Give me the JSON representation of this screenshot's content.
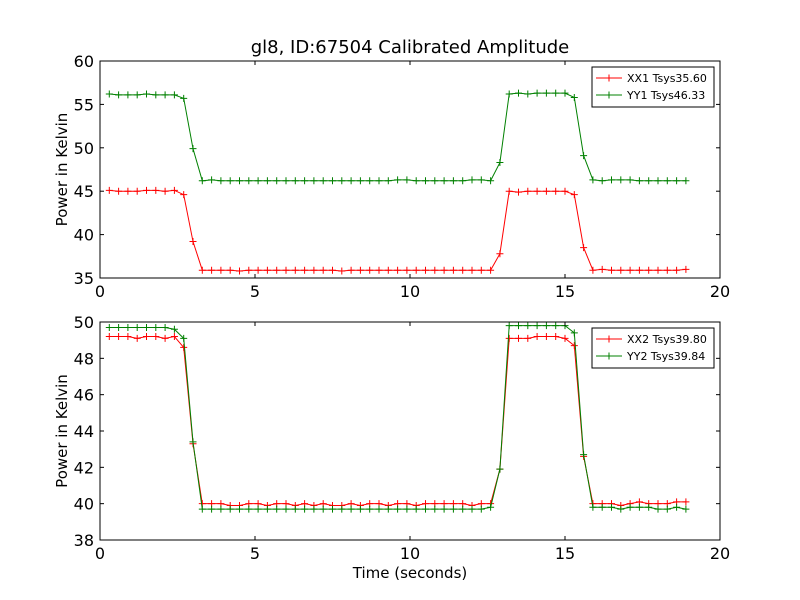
{
  "chart_data": [
    {
      "type": "line",
      "title": "gl8, ID:67504 Calibrated Amplitude",
      "xlabel": "",
      "ylabel": "Power in Kelvin",
      "xlim": [
        0,
        20
      ],
      "ylim": [
        35,
        60
      ],
      "xticks": [
        0,
        5,
        10,
        15,
        20
      ],
      "yticks": [
        35,
        40,
        45,
        50,
        55,
        60
      ],
      "grid": false,
      "legend_position": "top-right",
      "x": [
        0.3,
        0.6,
        0.9,
        1.2,
        1.5,
        1.8,
        2.1,
        2.4,
        2.7,
        3.0,
        3.3,
        3.6,
        3.9,
        4.2,
        4.5,
        4.8,
        5.1,
        5.4,
        5.7,
        6.0,
        6.3,
        6.6,
        6.9,
        7.2,
        7.5,
        7.8,
        8.1,
        8.4,
        8.7,
        9.0,
        9.3,
        9.6,
        9.9,
        10.2,
        10.5,
        10.8,
        11.1,
        11.4,
        11.7,
        12.0,
        12.3,
        12.6,
        12.9,
        13.2,
        13.5,
        13.8,
        14.1,
        14.4,
        14.7,
        15.0,
        15.3,
        15.6,
        15.9,
        16.2,
        16.5,
        16.8,
        17.1,
        17.4,
        17.7,
        18.0,
        18.3,
        18.6,
        18.9
      ],
      "series": [
        {
          "name": "XX1 Tsys35.60",
          "color": "#ff0000",
          "values": [
            45.1,
            45.0,
            45.0,
            45.0,
            45.1,
            45.1,
            45.0,
            45.1,
            44.6,
            39.2,
            35.9,
            35.9,
            35.9,
            35.9,
            35.8,
            35.9,
            35.9,
            35.9,
            35.9,
            35.9,
            35.9,
            35.9,
            35.9,
            35.9,
            35.9,
            35.8,
            35.9,
            35.9,
            35.9,
            35.9,
            35.9,
            35.9,
            35.9,
            35.9,
            35.9,
            35.9,
            35.9,
            35.9,
            35.9,
            35.9,
            35.9,
            35.9,
            37.8,
            45.0,
            44.9,
            45.0,
            45.0,
            45.0,
            45.0,
            45.0,
            44.6,
            38.5,
            35.9,
            36.0,
            35.9,
            35.9,
            35.9,
            35.9,
            35.9,
            35.9,
            35.9,
            35.9,
            36.0
          ]
        },
        {
          "name": "YY1 Tsys46.33",
          "color": "#008000",
          "values": [
            56.2,
            56.1,
            56.1,
            56.1,
            56.2,
            56.1,
            56.1,
            56.1,
            55.7,
            49.9,
            46.2,
            46.3,
            46.2,
            46.2,
            46.2,
            46.2,
            46.2,
            46.2,
            46.2,
            46.2,
            46.2,
            46.2,
            46.2,
            46.2,
            46.2,
            46.2,
            46.2,
            46.2,
            46.2,
            46.2,
            46.2,
            46.3,
            46.3,
            46.2,
            46.2,
            46.2,
            46.2,
            46.2,
            46.2,
            46.3,
            46.3,
            46.2,
            48.3,
            56.2,
            56.3,
            56.2,
            56.3,
            56.3,
            56.3,
            56.3,
            55.8,
            49.1,
            46.3,
            46.2,
            46.3,
            46.3,
            46.3,
            46.2,
            46.2,
            46.2,
            46.2,
            46.2,
            46.2
          ]
        }
      ]
    },
    {
      "type": "line",
      "title": "",
      "xlabel": "Time (seconds)",
      "ylabel": "Power in Kelvin",
      "xlim": [
        0,
        20
      ],
      "ylim": [
        38,
        50
      ],
      "xticks": [
        0,
        5,
        10,
        15,
        20
      ],
      "yticks": [
        38,
        40,
        42,
        44,
        46,
        48,
        50
      ],
      "grid": false,
      "legend_position": "top-right",
      "x": [
        0.3,
        0.6,
        0.9,
        1.2,
        1.5,
        1.8,
        2.1,
        2.4,
        2.7,
        3.0,
        3.3,
        3.6,
        3.9,
        4.2,
        4.5,
        4.8,
        5.1,
        5.4,
        5.7,
        6.0,
        6.3,
        6.6,
        6.9,
        7.2,
        7.5,
        7.8,
        8.1,
        8.4,
        8.7,
        9.0,
        9.3,
        9.6,
        9.9,
        10.2,
        10.5,
        10.8,
        11.1,
        11.4,
        11.7,
        12.0,
        12.3,
        12.6,
        12.9,
        13.2,
        13.5,
        13.8,
        14.1,
        14.4,
        14.7,
        15.0,
        15.3,
        15.6,
        15.9,
        16.2,
        16.5,
        16.8,
        17.1,
        17.4,
        17.7,
        18.0,
        18.3,
        18.6,
        18.9
      ],
      "series": [
        {
          "name": "XX2 Tsys39.80",
          "color": "#ff0000",
          "values": [
            49.2,
            49.2,
            49.2,
            49.1,
            49.2,
            49.2,
            49.1,
            49.2,
            48.6,
            43.3,
            40.0,
            40.0,
            40.0,
            39.9,
            39.9,
            40.0,
            40.0,
            39.9,
            40.0,
            40.0,
            39.9,
            40.0,
            39.9,
            40.0,
            39.9,
            39.9,
            40.0,
            39.9,
            40.0,
            40.0,
            39.9,
            40.0,
            40.0,
            39.9,
            40.0,
            40.0,
            40.0,
            40.0,
            40.0,
            39.9,
            40.0,
            40.0,
            41.9,
            49.1,
            49.1,
            49.1,
            49.2,
            49.2,
            49.2,
            49.1,
            48.7,
            42.6,
            40.0,
            40.0,
            40.0,
            39.9,
            40.0,
            40.1,
            40.0,
            40.0,
            40.0,
            40.1,
            40.1
          ]
        },
        {
          "name": "YY2 Tsys39.84",
          "color": "#008000",
          "values": [
            49.7,
            49.7,
            49.7,
            49.7,
            49.7,
            49.7,
            49.7,
            49.6,
            49.1,
            43.4,
            39.7,
            39.7,
            39.7,
            39.7,
            39.7,
            39.7,
            39.7,
            39.7,
            39.7,
            39.7,
            39.7,
            39.7,
            39.7,
            39.7,
            39.7,
            39.7,
            39.7,
            39.7,
            39.7,
            39.7,
            39.7,
            39.7,
            39.7,
            39.7,
            39.7,
            39.7,
            39.7,
            39.7,
            39.7,
            39.7,
            39.7,
            39.8,
            41.9,
            49.8,
            49.8,
            49.8,
            49.8,
            49.8,
            49.8,
            49.8,
            49.4,
            42.7,
            39.8,
            39.8,
            39.8,
            39.7,
            39.8,
            39.8,
            39.8,
            39.7,
            39.7,
            39.8,
            39.7
          ]
        }
      ]
    }
  ]
}
